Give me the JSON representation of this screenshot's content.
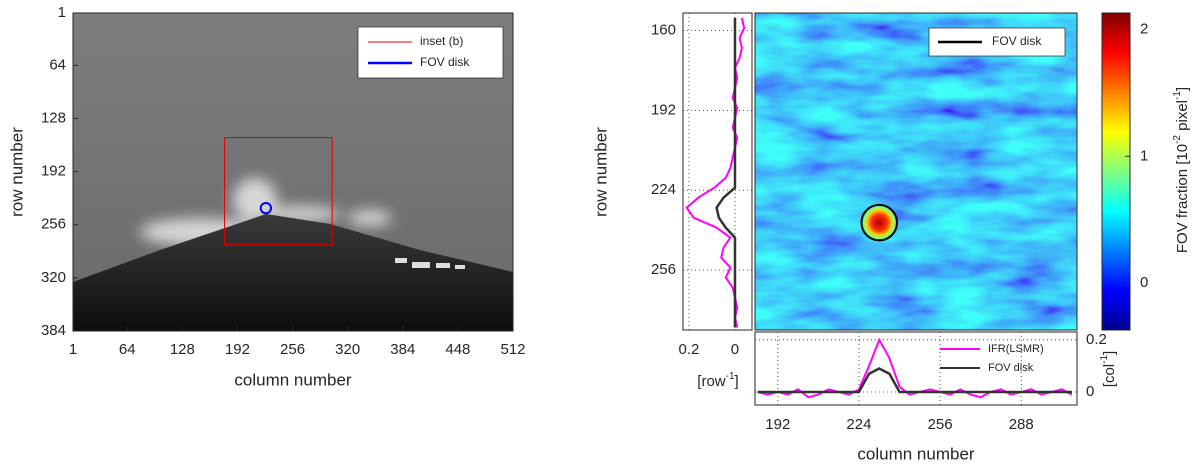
{
  "chart_data": [
    {
      "type": "image",
      "xlabel": "column number",
      "ylabel": "row number",
      "xlim": [
        1,
        512
      ],
      "ylim": [
        384,
        1
      ],
      "xticks": [
        1,
        64,
        128,
        192,
        256,
        320,
        384,
        448,
        512
      ],
      "yticks": [
        1,
        64,
        128,
        192,
        256,
        320,
        384
      ],
      "legend": "upper right",
      "overlays": [
        {
          "name": "inset (b)",
          "kind": "rect",
          "color": "#e00000",
          "x": [
            177,
            302
          ],
          "y": [
            151,
            280
          ]
        },
        {
          "name": "FOV disk",
          "kind": "circle",
          "color": "#0000ff",
          "x": 225,
          "y": 236,
          "r": 6
        }
      ]
    },
    {
      "type": "heatmap",
      "xlim": [
        183,
        310
      ],
      "ylim": [
        280,
        153
      ],
      "colormap": "jet",
      "clim": [
        -0.37,
        2.13
      ],
      "cticks": [
        0,
        1,
        2
      ],
      "clabel": [
        "FOV fraction [10",
        "-2",
        " pixel",
        "-1",
        "]"
      ],
      "legend": "upper right",
      "overlays": [
        {
          "name": "FOV disk",
          "kind": "circle",
          "color": "#000000",
          "x": 232,
          "y": 237,
          "r": 7
        }
      ]
    },
    {
      "type": "line",
      "orientation": "vertical",
      "ylabel": "row number",
      "xlim": [
        0.226,
        -0.074
      ],
      "xticks": [
        0.2,
        0
      ],
      "xlabel": [
        "[row",
        "-1",
        "]"
      ],
      "ylim": [
        280,
        153
      ],
      "yticks": [
        160,
        192,
        224,
        256
      ],
      "grid": true,
      "y": [
        155,
        159,
        163,
        167,
        171,
        175,
        179,
        183,
        187,
        191,
        195,
        199,
        203,
        207,
        211,
        215,
        219,
        223,
        227,
        231,
        235,
        239,
        243,
        247,
        251,
        255,
        259,
        263,
        267,
        271,
        275,
        279
      ],
      "series": [
        {
          "color": "#ff00ff",
          "values": [
            -0.03,
            -0.04,
            -0.02,
            -0.03,
            -0.02,
            0.0,
            -0.01,
            0.0,
            0.01,
            -0.01,
            0.0,
            0.01,
            -0.01,
            0.0,
            0.01,
            0.02,
            0.04,
            0.09,
            0.16,
            0.21,
            0.18,
            0.08,
            0.02,
            0.05,
            0.06,
            0.02,
            0.04,
            0.01,
            0.0,
            -0.01,
            0.0,
            -0.01
          ]
        },
        {
          "color": "#333333",
          "values": [
            0,
            0,
            0,
            0,
            0,
            0,
            0,
            0,
            0,
            0,
            0,
            0,
            0,
            0,
            0,
            0,
            0,
            0,
            0.05,
            0.08,
            0.07,
            0.04,
            0,
            0,
            0,
            0,
            0,
            0,
            0,
            0,
            0,
            0
          ]
        }
      ]
    },
    {
      "type": "line",
      "xlabel": "column number",
      "xlim": [
        183,
        310
      ],
      "xticks": [
        192,
        224,
        256,
        288
      ],
      "ylim": [
        -0.05,
        0.23
      ],
      "yticks": [
        0,
        0.2
      ],
      "ylabel": [
        "[col",
        "-1",
        "]"
      ],
      "grid": true,
      "legend": "upper right",
      "x": [
        184,
        188,
        192,
        196,
        200,
        204,
        208,
        212,
        216,
        220,
        224,
        228,
        232,
        236,
        240,
        244,
        248,
        252,
        256,
        260,
        264,
        268,
        272,
        276,
        280,
        284,
        288,
        292,
        296,
        300,
        304,
        308
      ],
      "series": [
        {
          "name": "IFR(LSMR)",
          "color": "#ff00ff",
          "values": [
            0.0,
            -0.01,
            0.0,
            -0.01,
            0.01,
            -0.02,
            -0.01,
            0.01,
            0.0,
            -0.01,
            0.01,
            0.1,
            0.2,
            0.13,
            0.02,
            -0.01,
            0.0,
            0.01,
            0.0,
            -0.01,
            0.01,
            -0.01,
            -0.02,
            0.0,
            0.01,
            -0.01,
            0.0,
            0.01,
            -0.01,
            0.0,
            0.01,
            -0.01
          ]
        },
        {
          "name": "FOV disk",
          "color": "#333333",
          "values": [
            0,
            0,
            0,
            0,
            0,
            0,
            0,
            0,
            0,
            0,
            0,
            0.07,
            0.09,
            0.07,
            0,
            0,
            0,
            0,
            0,
            0,
            0,
            0,
            0,
            0,
            0,
            0,
            0,
            0,
            0,
            0,
            0,
            0
          ]
        }
      ]
    }
  ]
}
